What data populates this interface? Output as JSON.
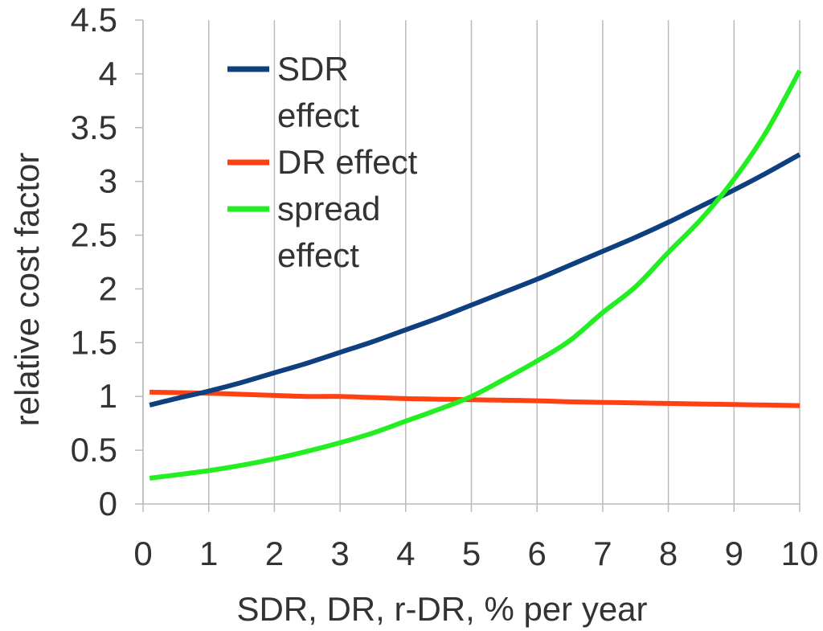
{
  "chart_data": {
    "type": "line",
    "title": "",
    "xlabel": "SDR, DR, r-DR, % per year",
    "ylabel": "relative cost factor",
    "xlim": [
      0,
      10
    ],
    "ylim": [
      0,
      4.5
    ],
    "grid": "vertical",
    "x_ticks": [
      "0",
      "1",
      "2",
      "3",
      "4",
      "5",
      "6",
      "7",
      "8",
      "9",
      "10"
    ],
    "y_ticks": [
      "0",
      "0.5",
      "1",
      "1.5",
      "2",
      "2.5",
      "3",
      "3.5",
      "4",
      "4.5"
    ],
    "legend_position": "top-left",
    "x": [
      0.1,
      0.5,
      1,
      1.5,
      2,
      2.5,
      3,
      3.5,
      4,
      4.5,
      5,
      5.5,
      6,
      6.5,
      7,
      7.5,
      8,
      8.5,
      9,
      9.5,
      10
    ],
    "series": [
      {
        "name": "SDR effect",
        "legend": [
          "SDR",
          "effect"
        ],
        "color": "#0e3f7f",
        "values": [
          0.92,
          0.98,
          1.05,
          1.13,
          1.22,
          1.31,
          1.41,
          1.51,
          1.62,
          1.73,
          1.85,
          1.97,
          2.09,
          2.22,
          2.35,
          2.48,
          2.62,
          2.77,
          2.92,
          3.08,
          3.25
        ]
      },
      {
        "name": "DR effect",
        "legend": [
          "DR effect"
        ],
        "color": "#ff4010",
        "values": [
          1.04,
          1.036,
          1.03,
          1.02,
          1.01,
          1.0,
          1.0,
          0.99,
          0.98,
          0.975,
          0.97,
          0.965,
          0.96,
          0.95,
          0.945,
          0.94,
          0.935,
          0.93,
          0.925,
          0.92,
          0.915
        ]
      },
      {
        "name": "spread effect",
        "legend": [
          "spread",
          "effect"
        ],
        "color": "#22ee22",
        "values": [
          0.24,
          0.27,
          0.31,
          0.36,
          0.42,
          0.49,
          0.57,
          0.66,
          0.77,
          0.88,
          1.0,
          1.16,
          1.33,
          1.52,
          1.78,
          2.02,
          2.34,
          2.65,
          3.02,
          3.47,
          4.03
        ]
      }
    ]
  }
}
